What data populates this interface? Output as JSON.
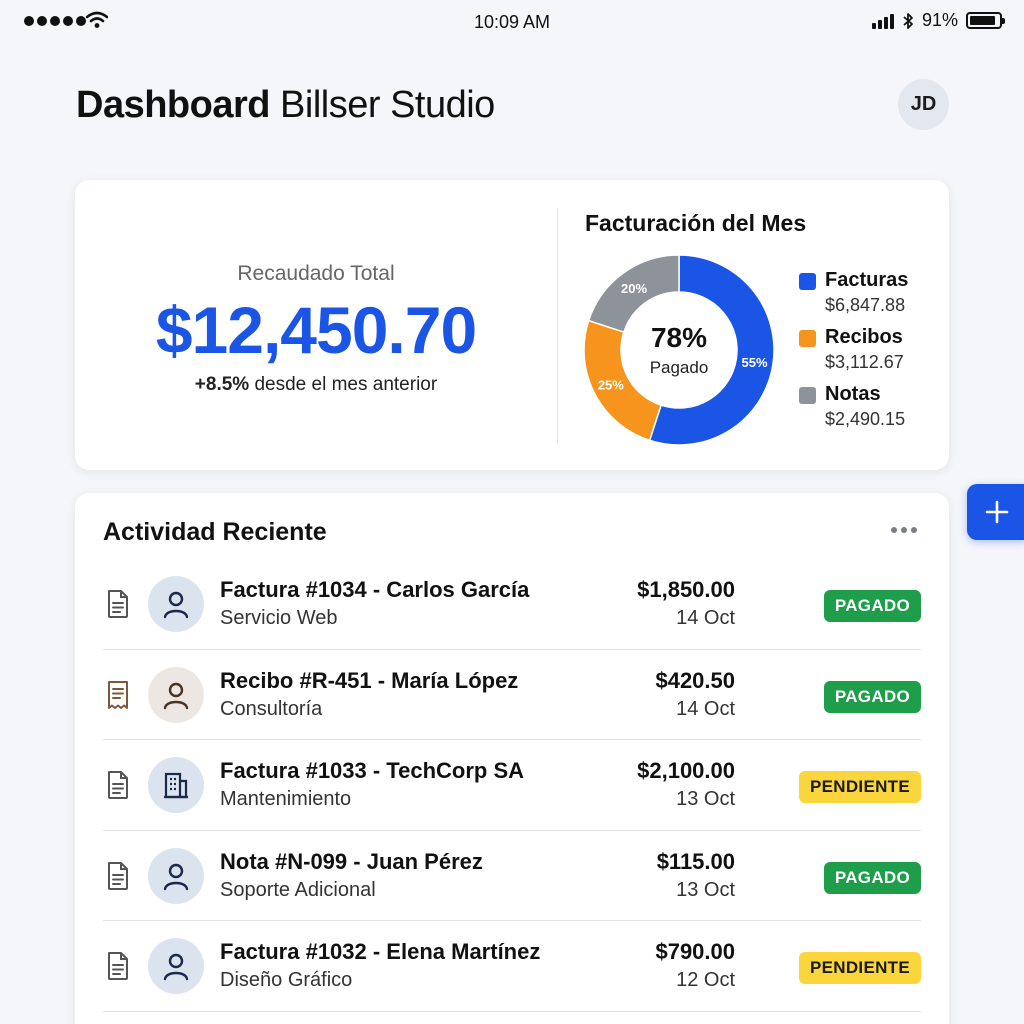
{
  "status_bar": {
    "time": "10:09 AM",
    "battery_text": "91%",
    "battery_level": 0.91,
    "icons": [
      "signal-dots-icon",
      "wifi-icon",
      "cellular-bars-icon",
      "bluetooth-icon",
      "battery-icon"
    ]
  },
  "header": {
    "title_bold": "Dashboard",
    "title_light": "Billser Studio",
    "avatar_initials": "JD"
  },
  "summary": {
    "label": "Recaudado Total",
    "amount": "$12,450.70",
    "change_value": "+8.5%",
    "change_text": "desde el mes anterior"
  },
  "chart_data": {
    "type": "pie",
    "title": "Facturación del Mes",
    "center_value": "78%",
    "center_label": "Pagado",
    "slices": [
      {
        "name": "Facturas",
        "value_label": "$6,847.88",
        "percent": 55,
        "percent_label": "55%",
        "color": "#1a55e6"
      },
      {
        "name": "Recibos",
        "value_label": "$3,112.67",
        "percent": 25,
        "percent_label": "25%",
        "color": "#f7941d"
      },
      {
        "name": "Notas",
        "value_label": "$2,490.15",
        "percent": 20,
        "percent_label": "20%",
        "color": "#8e9399"
      }
    ],
    "legend_position": "right"
  },
  "activity": {
    "title": "Actividad Reciente",
    "more_icon": "more-horizontal-icon",
    "rows": [
      {
        "title": "Factura #1034 - Carlos García",
        "subtitle": "Servicio Web",
        "amount": "$1,850.00",
        "date": "14 Oct",
        "status": "PAGADO",
        "status_type": "paid",
        "doc_icon": "document-icon",
        "avatar_icon": "person-icon"
      },
      {
        "title": "Recibo #R-451 - María López",
        "subtitle": "Consultoría",
        "amount": "$420.50",
        "date": "14 Oct",
        "status": "PAGADO",
        "status_type": "paid",
        "doc_icon": "receipt-icon",
        "avatar_icon": "person-icon"
      },
      {
        "title": "Factura #1033 - TechCorp SA",
        "subtitle": "Mantenimiento",
        "amount": "$2,100.00",
        "date": "13 Oct",
        "status": "PENDIENTE",
        "status_type": "pending",
        "doc_icon": "document-icon",
        "avatar_icon": "building-icon"
      },
      {
        "title": "Nota #N-099 - Juan Pérez",
        "subtitle": "Soporte Adicional",
        "amount": "$115.00",
        "date": "13 Oct",
        "status": "PAGADO",
        "status_type": "paid",
        "doc_icon": "document-icon",
        "avatar_icon": "person-icon"
      },
      {
        "title": "Factura #1032 - Elena Martínez",
        "subtitle": "Diseño Gráfico",
        "amount": "$790.00",
        "date": "12 Oct",
        "status": "PENDIENTE",
        "status_type": "pending",
        "doc_icon": "document-icon",
        "avatar_icon": "person-icon"
      }
    ]
  },
  "fab": {
    "icon": "plus-icon"
  },
  "colors": {
    "accent": "#1a55e6",
    "paid_bg": "#1e9e4a",
    "paid_text": "#ffffff",
    "pending_bg": "#fad63c",
    "pending_text": "#1a1a1a"
  }
}
